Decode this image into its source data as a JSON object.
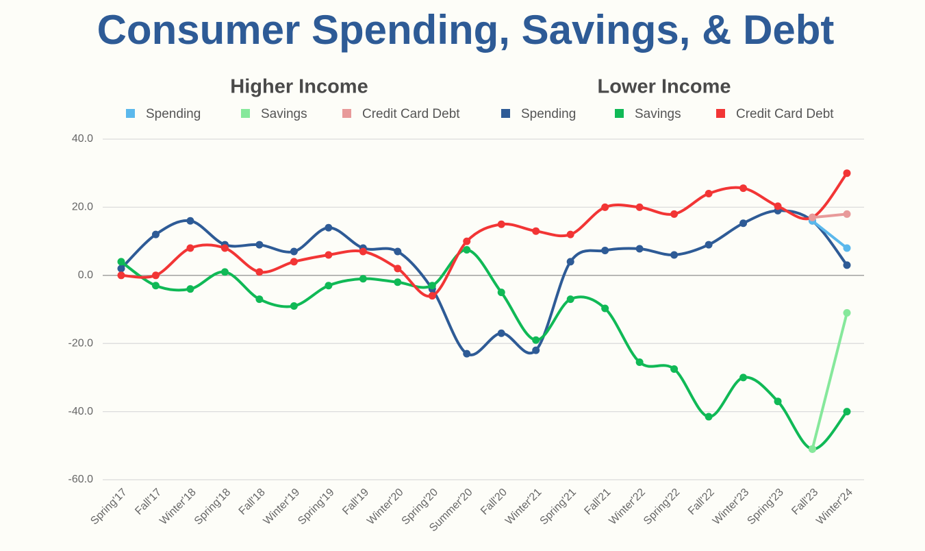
{
  "chart_data": {
    "type": "line",
    "title": "Consumer Spending, Savings, & Debt",
    "legend_groups": [
      "Higher Income",
      "Lower Income"
    ],
    "categories": [
      "Spring'17",
      "Fall'17",
      "Winter'18",
      "Spring'18",
      "Fall'18",
      "Winter'19",
      "Spring'19",
      "Fall'19",
      "Winter'20",
      "Spring'20",
      "Summer'20",
      "Fall'20",
      "Winter'21",
      "Spring'21",
      "Fall'21",
      "Winter'22",
      "Spring'22",
      "Fall'22",
      "Winter'23",
      "Spring'23",
      "Fall'23",
      "Winter'24"
    ],
    "series": [
      {
        "name": "Spending",
        "color": "#5bb8ec",
        "values": [
          null,
          null,
          null,
          null,
          null,
          null,
          null,
          null,
          null,
          null,
          null,
          null,
          null,
          null,
          null,
          null,
          null,
          null,
          null,
          null,
          16,
          8
        ]
      },
      {
        "name": "Savings",
        "color": "#86e89b",
        "values": [
          null,
          null,
          null,
          null,
          null,
          null,
          null,
          null,
          null,
          null,
          null,
          null,
          null,
          null,
          null,
          null,
          null,
          null,
          null,
          null,
          -51,
          -11
        ]
      },
      {
        "name": "Credit Card Debt",
        "color": "#e89a9a",
        "values": [
          null,
          null,
          null,
          null,
          null,
          null,
          null,
          null,
          null,
          null,
          null,
          null,
          null,
          null,
          null,
          null,
          null,
          null,
          null,
          null,
          17,
          18
        ]
      },
      {
        "name": "Spending",
        "color": "#2e5b96",
        "values": [
          2,
          12,
          16,
          9,
          9,
          7,
          14,
          8,
          7,
          -4,
          -23,
          -17,
          -22,
          4,
          7.3,
          7.8,
          6,
          9,
          15.3,
          19,
          16,
          3
        ]
      },
      {
        "name": "Savings",
        "color": "#10b956",
        "values": [
          4,
          -3,
          -4,
          1,
          -7,
          -9,
          -3,
          -1,
          -2,
          -3,
          7.5,
          -5,
          -19,
          -7,
          -9.7,
          -25.5,
          -27.5,
          -41.5,
          -30,
          -37,
          -51,
          -40
        ]
      },
      {
        "name": "Credit Card Debt",
        "color": "#f23535",
        "values": [
          0,
          0,
          8,
          8,
          1,
          4,
          6,
          7,
          2,
          -6,
          10,
          15,
          13,
          12,
          20,
          20,
          18,
          24,
          25.6,
          20.3,
          17,
          30
        ]
      }
    ],
    "ylim": [
      -60,
      40
    ],
    "yticks": [
      {
        "value": -60,
        "label": "-60.0"
      },
      {
        "value": -40,
        "label": "-40.0"
      },
      {
        "value": -20,
        "label": "-20.0"
      },
      {
        "value": 0,
        "label": "0.0"
      },
      {
        "value": 20,
        "label": "20.0"
      },
      {
        "value": 40,
        "label": "40.0"
      }
    ],
    "grid": true
  }
}
